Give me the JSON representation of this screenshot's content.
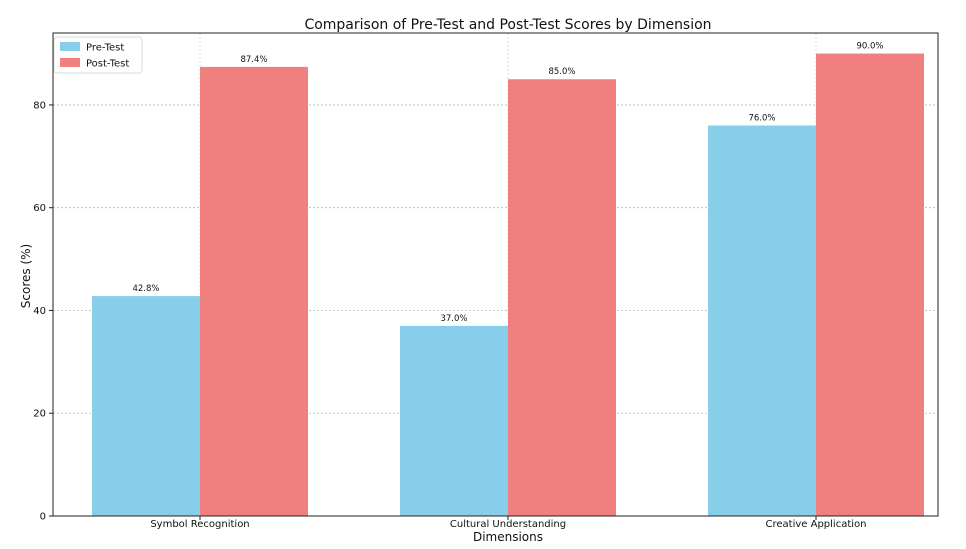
{
  "chart_data": {
    "type": "bar",
    "title": "Comparison of Pre-Test and Post-Test Scores by Dimension",
    "xlabel": "Dimensions",
    "ylabel": "Scores (%)",
    "categories": [
      "Symbol Recognition",
      "Cultural Understanding",
      "Creative Application"
    ],
    "series": [
      {
        "name": "Pre-Test",
        "values": [
          42.8,
          37.0,
          76.0
        ],
        "labels": [
          "42.8%",
          "37.0%",
          "76.0%"
        ],
        "color": "#87ceeb"
      },
      {
        "name": "Post-Test",
        "values": [
          87.4,
          85.0,
          90.0
        ],
        "labels": [
          "87.4%",
          "85.0%",
          "90.0%"
        ],
        "color": "#f08080"
      }
    ],
    "ylim": [
      0,
      94
    ],
    "yticks": [
      0,
      20,
      40,
      60,
      80
    ],
    "ytick_labels": [
      "0",
      "20",
      "40",
      "60",
      "80"
    ],
    "grid": "on",
    "legend_position": "upper-left"
  }
}
